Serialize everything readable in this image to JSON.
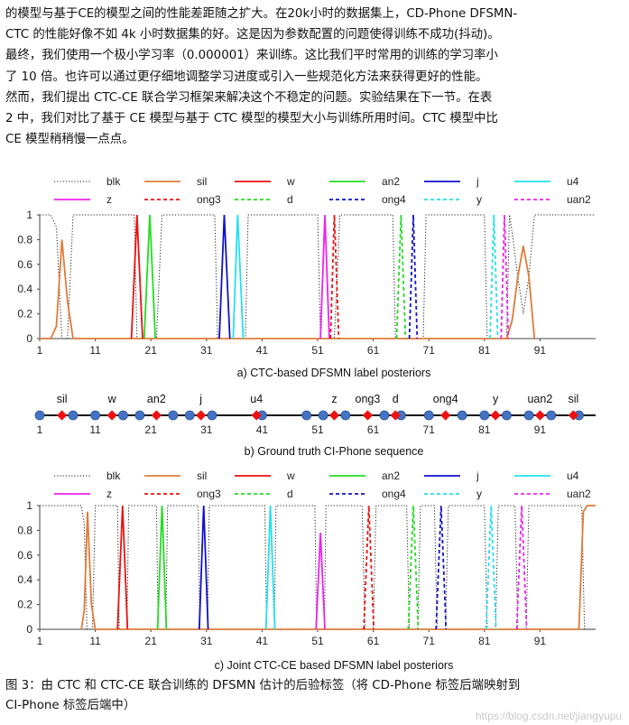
{
  "body_lines": [
    "的模型与基于CE的模型之间的性能差距随之扩大。在20k小时的数据集上，CD-Phone DFSMN-",
    "CTC 的性能好像不如 4k 小时数据集的好。这是因为参数配置的问题使得训练不成功(抖动)。",
    "最终，我们使用一个极小学习率（0.000001）来训练。这比我们平时常用的训练的学习率小",
    "了 10 倍。也许可以通过更仔细地调整学习进度或引入一些规范化方法来获得更好的性能。",
    "然而，我们提出 CTC-CE 联合学习框架来解决这个不稳定的问题。实验结果在下一节。在表",
    "2 中，我们对比了基于 CE 模型与基于 CTC 模型的模型大小与训练所用时间。CTC 模型中比",
    "CE 模型稍稍慢一点点。"
  ],
  "legend": [
    {
      "label": "blk",
      "color": "#222222",
      "dash": "dot"
    },
    {
      "label": "sil",
      "color": "#e07b39",
      "dash": "solid"
    },
    {
      "label": "w",
      "color": "#ee1111",
      "dash": "solid"
    },
    {
      "label": "an2",
      "color": "#22dd22",
      "dash": "solid"
    },
    {
      "label": "j",
      "color": "#1111cc",
      "dash": "solid"
    },
    {
      "label": "u4",
      "color": "#22e0ee",
      "dash": "solid"
    },
    {
      "label": "z",
      "color": "#ee22ee",
      "dash": "solid"
    },
    {
      "label": "ong3",
      "color": "#ee1111",
      "dash": "dash"
    },
    {
      "label": "d",
      "color": "#22dd22",
      "dash": "dash"
    },
    {
      "label": "ong4",
      "color": "#1111cc",
      "dash": "dash"
    },
    {
      "label": "y",
      "color": "#22e0ee",
      "dash": "dash"
    },
    {
      "label": "uan2",
      "color": "#ee22ee",
      "dash": "dash"
    }
  ],
  "x_ticks": [
    "1",
    "11",
    "21",
    "31",
    "41",
    "51",
    "61",
    "71",
    "81",
    "91"
  ],
  "y_ticks": [
    "0",
    "0.2",
    "0.4",
    "0.6",
    "0.8",
    "1"
  ],
  "seq_labels": [
    "sil",
    "w",
    "an2",
    "j",
    "u4",
    "z",
    "ong3",
    "d",
    "ong4",
    "y",
    "uan2",
    "sil"
  ],
  "chart_data": [
    {
      "type": "line",
      "title": "a)  CTC-based DFSMN label posteriors",
      "xlim": [
        1,
        101
      ],
      "ylim": [
        0,
        1
      ],
      "grid": false,
      "legend": "top",
      "series": [
        {
          "name": "blk",
          "points": [
            [
              1,
              1
            ],
            [
              3,
              1
            ],
            [
              4,
              0.9
            ],
            [
              5,
              0
            ],
            [
              6,
              0
            ],
            [
              7,
              1
            ],
            [
              18,
              1
            ],
            [
              18.5,
              0
            ],
            [
              22,
              0
            ],
            [
              23,
              1
            ],
            [
              32.5,
              1
            ],
            [
              33,
              0
            ],
            [
              38,
              0
            ],
            [
              38.5,
              1
            ],
            [
              51,
              1
            ],
            [
              51.5,
              0
            ],
            [
              54,
              0
            ],
            [
              55,
              1
            ],
            [
              64.5,
              1
            ],
            [
              65,
              0
            ],
            [
              70,
              0
            ],
            [
              70.5,
              1
            ],
            [
              81,
              1
            ],
            [
              81.5,
              0
            ],
            [
              85,
              0
            ],
            [
              85.5,
              1
            ],
            [
              86,
              0.85
            ],
            [
              87,
              0.5
            ],
            [
              88,
              0.2
            ],
            [
              89,
              0.5
            ],
            [
              90,
              1
            ],
            [
              101,
              1
            ]
          ]
        },
        {
          "name": "sil",
          "points": [
            [
              1,
              0
            ],
            [
              3,
              0
            ],
            [
              4,
              0.1
            ],
            [
              5,
              0.8
            ],
            [
              6,
              0.3
            ],
            [
              7,
              0
            ],
            [
              85,
              0
            ],
            [
              86,
              0.15
            ],
            [
              87,
              0.5
            ],
            [
              88,
              0.75
            ],
            [
              89,
              0.5
            ],
            [
              90,
              0
            ]
          ]
        },
        {
          "name": "w",
          "points": [
            [
              17.5,
              0
            ],
            [
              18.5,
              1
            ],
            [
              19.5,
              0
            ]
          ]
        },
        {
          "name": "an2",
          "points": [
            [
              19.8,
              0
            ],
            [
              20.8,
              1
            ],
            [
              21.8,
              0
            ]
          ]
        },
        {
          "name": "j",
          "points": [
            [
              33.3,
              0
            ],
            [
              34.2,
              1
            ],
            [
              35.2,
              0
            ]
          ]
        },
        {
          "name": "u4",
          "points": [
            [
              35.8,
              0
            ],
            [
              36.6,
              1
            ],
            [
              37.6,
              0
            ]
          ]
        },
        {
          "name": "z",
          "points": [
            [
              51.5,
              0
            ],
            [
              52.3,
              1
            ],
            [
              53.1,
              0
            ]
          ]
        },
        {
          "name": "ong3",
          "points": [
            [
              53.3,
              0
            ],
            [
              54,
              1
            ],
            [
              54.8,
              0
            ]
          ]
        },
        {
          "name": "d",
          "points": [
            [
              65.2,
              0
            ],
            [
              66,
              1
            ],
            [
              66.8,
              0
            ]
          ]
        },
        {
          "name": "ong4",
          "points": [
            [
              67.5,
              0
            ],
            [
              68.2,
              1
            ],
            [
              68.9,
              0
            ]
          ]
        },
        {
          "name": "y",
          "points": [
            [
              82,
              0
            ],
            [
              82.7,
              1
            ],
            [
              83.4,
              0
            ]
          ]
        },
        {
          "name": "uan2",
          "points": [
            [
              84,
              0
            ],
            [
              84.6,
              1
            ],
            [
              85.3,
              0
            ]
          ]
        }
      ]
    },
    {
      "type": "scatter",
      "title": "b)  Ground truth CI-Phone sequence",
      "xlim": [
        1,
        101
      ],
      "blue_frames": [
        1,
        7,
        11,
        16,
        19,
        25,
        28,
        32,
        41,
        49,
        52,
        56,
        63,
        66,
        71,
        77,
        81,
        85,
        89,
        93,
        98
      ],
      "red_frames": [
        5,
        14,
        22,
        30,
        40,
        54,
        60,
        65,
        74,
        83,
        91,
        97
      ]
    },
    {
      "type": "line",
      "title": "c)  Joint CTC-CE based DFSMN label posteriors",
      "xlim": [
        1,
        101
      ],
      "ylim": [
        0,
        1
      ],
      "grid": false,
      "legend": "top",
      "series": [
        {
          "name": "blk",
          "points": [
            [
              1,
              1
            ],
            [
              8.5,
              1
            ],
            [
              9,
              0.85
            ],
            [
              9.5,
              0
            ],
            [
              10.5,
              0
            ],
            [
              11,
              1
            ],
            [
              15,
              1
            ],
            [
              15.3,
              0
            ],
            [
              16.7,
              0
            ],
            [
              17,
              1
            ],
            [
              22,
              1
            ],
            [
              22.3,
              0
            ],
            [
              23.7,
              0
            ],
            [
              24,
              1
            ],
            [
              29.5,
              1
            ],
            [
              29.8,
              0
            ],
            [
              31.2,
              0
            ],
            [
              31.5,
              1
            ],
            [
              41.5,
              1
            ],
            [
              41.8,
              0
            ],
            [
              43.2,
              0
            ],
            [
              43.5,
              1
            ],
            [
              50.5,
              1
            ],
            [
              50.8,
              0
            ],
            [
              52.2,
              0
            ],
            [
              52.5,
              1
            ],
            [
              59,
              1
            ],
            [
              59.5,
              0
            ],
            [
              61,
              0
            ],
            [
              61.5,
              1
            ],
            [
              67,
              1
            ],
            [
              67.5,
              0
            ],
            [
              69,
              0
            ],
            [
              69.5,
              1
            ],
            [
              72,
              1
            ],
            [
              72.5,
              0
            ],
            [
              74,
              0
            ],
            [
              74.5,
              1
            ],
            [
              81,
              1
            ],
            [
              81.5,
              0
            ],
            [
              83,
              0
            ],
            [
              83.5,
              1
            ],
            [
              86.5,
              1
            ],
            [
              87,
              0
            ],
            [
              88.5,
              0
            ],
            [
              89,
              1
            ],
            [
              98.5,
              1
            ],
            [
              99,
              0
            ],
            [
              101,
              0
            ]
          ]
        },
        {
          "name": "sil",
          "points": [
            [
              8.5,
              0
            ],
            [
              9,
              0.15
            ],
            [
              9.6,
              0.95
            ],
            [
              10.3,
              0.2
            ],
            [
              11,
              0
            ],
            [
              98,
              0
            ],
            [
              98.8,
              0.95
            ],
            [
              99.5,
              1
            ],
            [
              101,
              1
            ]
          ]
        },
        {
          "name": "w",
          "points": [
            [
              15,
              0
            ],
            [
              15.9,
              1
            ],
            [
              16.8,
              0
            ]
          ]
        },
        {
          "name": "an2",
          "points": [
            [
              22.2,
              0
            ],
            [
              23,
              1
            ],
            [
              23.8,
              0
            ]
          ]
        },
        {
          "name": "j",
          "points": [
            [
              29.7,
              0
            ],
            [
              30.5,
              1
            ],
            [
              31.3,
              0
            ]
          ]
        },
        {
          "name": "u4",
          "points": [
            [
              41.7,
              0
            ],
            [
              42.5,
              1
            ],
            [
              43.3,
              0
            ]
          ]
        },
        {
          "name": "z",
          "points": [
            [
              50.7,
              0
            ],
            [
              51.5,
              0.78
            ],
            [
              52.3,
              0
            ]
          ]
        },
        {
          "name": "ong3",
          "points": [
            [
              59.3,
              0
            ],
            [
              60.2,
              1
            ],
            [
              61.1,
              0
            ]
          ]
        },
        {
          "name": "d",
          "points": [
            [
              67.3,
              0
            ],
            [
              68.2,
              1
            ],
            [
              69.1,
              0
            ]
          ]
        },
        {
          "name": "ong4",
          "points": [
            [
              72.3,
              0
            ],
            [
              73.2,
              1
            ],
            [
              74.1,
              0
            ]
          ]
        },
        {
          "name": "y",
          "points": [
            [
              81.3,
              0
            ],
            [
              82.2,
              1
            ],
            [
              83.1,
              0
            ]
          ]
        },
        {
          "name": "uan2",
          "points": [
            [
              86.8,
              0
            ],
            [
              87.7,
              1
            ],
            [
              88.6,
              0
            ]
          ]
        }
      ]
    }
  ],
  "caption_line1": "图 3：由 CTC 和 CTC-CE 联合训练的 DFSMN 估计的后验标签（将 CD-Phone 标签后端映射到",
  "caption_line2": "CI-Phone 标签后端中）",
  "watermark": "https://blog.csdn.net/jiangyupu"
}
